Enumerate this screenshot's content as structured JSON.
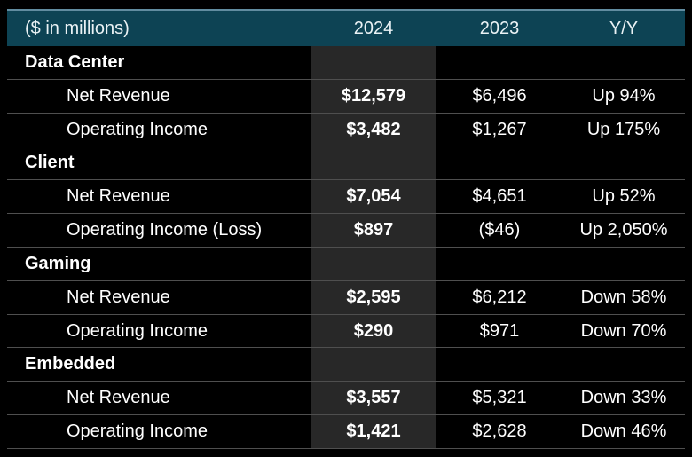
{
  "table": {
    "header": {
      "units": "($ in millions)",
      "col_2024": "2024",
      "col_2023": "2023",
      "col_yoy": "Y/Y"
    },
    "rows": [
      {
        "type": "section",
        "label": "Data Center",
        "v2024": "",
        "v2023": "",
        "yoy": ""
      },
      {
        "type": "data",
        "label": "Net Revenue",
        "v2024": "$12,579",
        "v2023": "$6,496",
        "yoy": "Up 94%"
      },
      {
        "type": "data",
        "label": "Operating Income",
        "v2024": "$3,482",
        "v2023": "$1,267",
        "yoy": "Up 175%"
      },
      {
        "type": "section",
        "label": "Client",
        "v2024": "",
        "v2023": "",
        "yoy": ""
      },
      {
        "type": "data",
        "label": "Net Revenue",
        "v2024": "$7,054",
        "v2023": "$4,651",
        "yoy": "Up 52%"
      },
      {
        "type": "data",
        "label": "Operating Income (Loss)",
        "v2024": "$897",
        "v2023": "($46)",
        "yoy": "Up 2,050%"
      },
      {
        "type": "section",
        "label": "Gaming",
        "v2024": "",
        "v2023": "",
        "yoy": ""
      },
      {
        "type": "data",
        "label": "Net Revenue",
        "v2024": "$2,595",
        "v2023": "$6,212",
        "yoy": "Down 58%"
      },
      {
        "type": "data",
        "label": "Operating Income",
        "v2024": "$290",
        "v2023": "$971",
        "yoy": "Down 70%"
      },
      {
        "type": "section",
        "label": "Embedded",
        "v2024": "",
        "v2023": "",
        "yoy": ""
      },
      {
        "type": "data",
        "label": "Net Revenue",
        "v2024": "$3,557",
        "v2023": "$5,321",
        "yoy": "Down 33%"
      },
      {
        "type": "data",
        "label": "Operating Income",
        "v2024": "$1,421",
        "v2023": "$2,628",
        "yoy": "Down 46%"
      }
    ]
  },
  "colors": {
    "background": "#000000",
    "header_bg": "#0d4354",
    "header_top_highlight": "#618ca0",
    "highlight_column_bg": "#282828",
    "row_divider": "#4f4f4f",
    "text": "#ffffff"
  },
  "chart_data": {
    "type": "table",
    "title": "($ in millions)",
    "columns": [
      "Segment / Metric",
      "2024",
      "2023",
      "Y/Y"
    ],
    "segments": [
      {
        "name": "Data Center",
        "net_revenue_2024": 12579,
        "net_revenue_2023": 6496,
        "net_revenue_yy": "Up 94%",
        "operating_income_2024": 3482,
        "operating_income_2023": 1267,
        "operating_income_yy": "Up 175%"
      },
      {
        "name": "Client",
        "net_revenue_2024": 7054,
        "net_revenue_2023": 4651,
        "net_revenue_yy": "Up 52%",
        "operating_income_2024": 897,
        "operating_income_2023": -46,
        "operating_income_yy": "Up 2,050%"
      },
      {
        "name": "Gaming",
        "net_revenue_2024": 2595,
        "net_revenue_2023": 6212,
        "net_revenue_yy": "Down 58%",
        "operating_income_2024": 290,
        "operating_income_2023": 971,
        "operating_income_yy": "Down 70%"
      },
      {
        "name": "Embedded",
        "net_revenue_2024": 3557,
        "net_revenue_2023": 5321,
        "net_revenue_yy": "Down 33%",
        "operating_income_2024": 1421,
        "operating_income_2023": 2628,
        "operating_income_yy": "Down 46%"
      }
    ]
  }
}
